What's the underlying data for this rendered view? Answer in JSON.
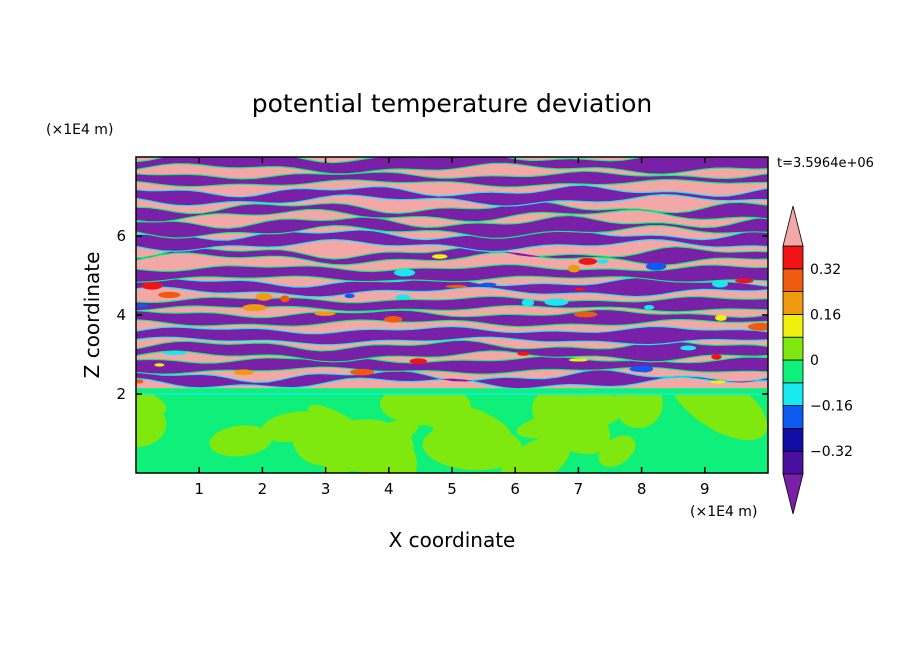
{
  "chart_data": {
    "type": "heatmap",
    "title": "potential temperature deviation",
    "xlabel": "X coordinate",
    "ylabel": "Z coordinate",
    "x_unit": "(×1E4 m)",
    "y_unit": "(×1E4 m)",
    "time_label": "t=3.5964e+06",
    "xlim": [
      0,
      10
    ],
    "ylim": [
      0,
      8
    ],
    "x_ticks": [
      1,
      2,
      3,
      4,
      5,
      6,
      7,
      8,
      9
    ],
    "y_ticks": [
      2,
      4,
      6
    ],
    "x_tick_labels": [
      "1",
      "2",
      "3",
      "4",
      "5",
      "6",
      "7",
      "8",
      "9"
    ],
    "y_tick_labels": [
      "2",
      "4",
      "6"
    ],
    "colorbar": {
      "levels": [
        -0.4,
        -0.32,
        -0.24,
        -0.16,
        -0.08,
        0,
        0.08,
        0.16,
        0.24,
        0.32,
        0.4
      ],
      "tick_values": [
        -0.32,
        -0.16,
        0,
        0.16,
        0.32
      ],
      "tick_labels": [
        "−0.32",
        "−0.16",
        "0",
        "0.16",
        "0.32"
      ],
      "under_color": "#7a1fa8",
      "over_color": "#f4a7a7",
      "colors": [
        "#4b0fa0",
        "#0f0fa8",
        "#0f5af0",
        "#18e8f0",
        "#0ff07a",
        "#7ee80f",
        "#f0f00f",
        "#f09a0f",
        "#f05a0f",
        "#f01414"
      ]
    }
  }
}
